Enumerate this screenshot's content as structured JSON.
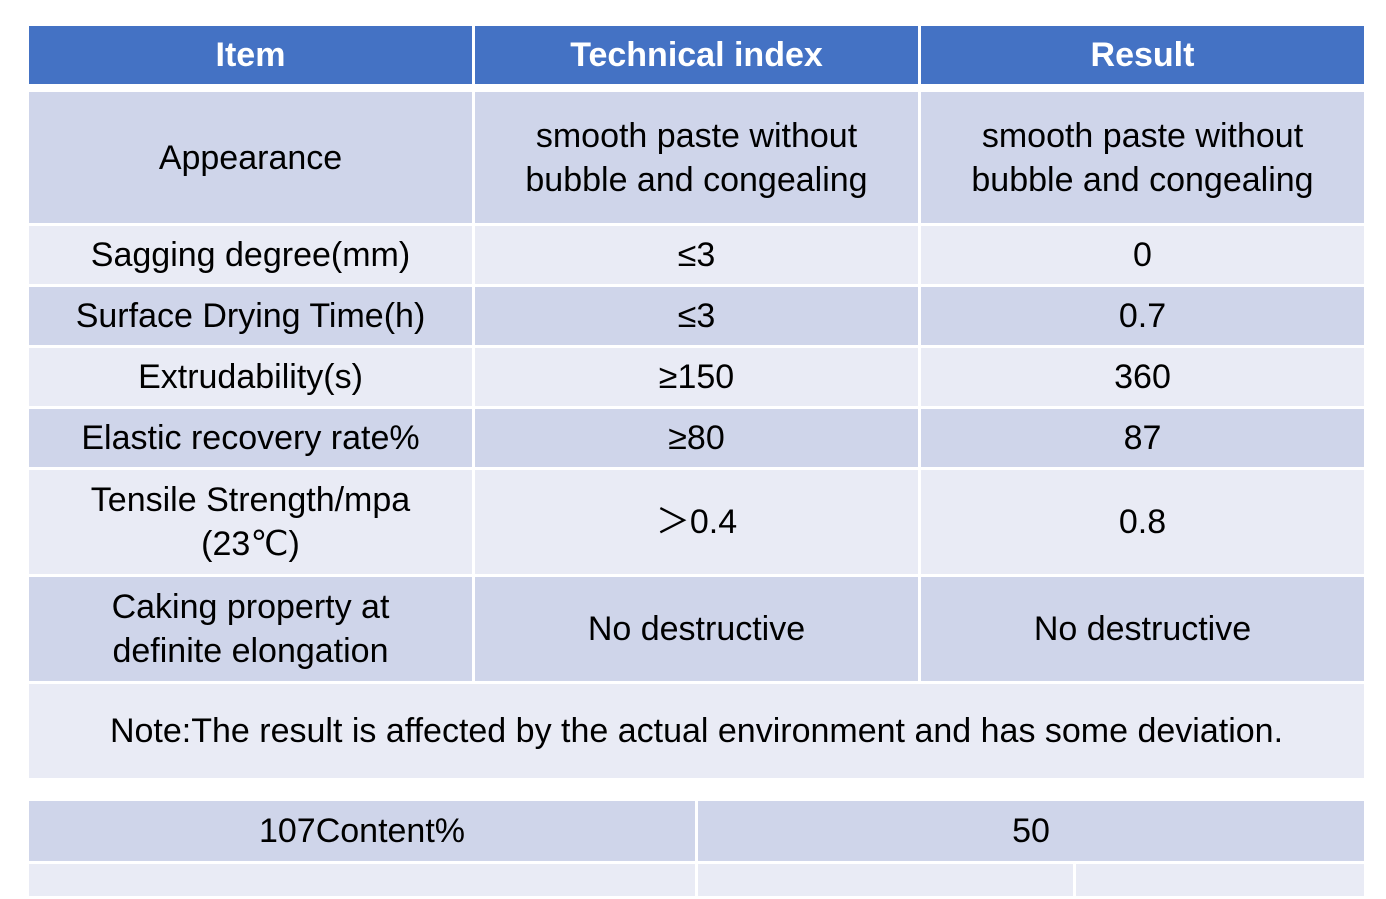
{
  "table": {
    "headers": {
      "item": "Item",
      "technical_index": "Technical index",
      "result": "Result"
    },
    "rows": [
      {
        "item": "Appearance",
        "technical_index_line1": "smooth paste without",
        "technical_index_line2": "bubble and congealing",
        "result_line1": "smooth paste without",
        "result_line2": "bubble and congealing"
      },
      {
        "item": "Sagging degree(mm)",
        "technical_index": "≤3",
        "result": "0"
      },
      {
        "item": "Surface Drying Time(h)",
        "technical_index": "≤3",
        "result": "0.7"
      },
      {
        "item": "Extrudability(s)",
        "technical_index": "≥150",
        "result": "360"
      },
      {
        "item": "Elastic recovery rate%",
        "technical_index": "≥80",
        "result": "87"
      },
      {
        "item_line1": "Tensile Strength/mpa",
        "item_line2": "(23℃)",
        "technical_index": "＞0.4",
        "result": "0.8"
      },
      {
        "item_line1": "Caking property at",
        "item_line2": "definite elongation",
        "technical_index": "No destructive",
        "result": "No destructive"
      }
    ],
    "note": "Note:The result is affected by the actual environment and has some deviation."
  },
  "bottom_table": {
    "rows": [
      {
        "label": "107Content%",
        "value": "50"
      }
    ]
  },
  "colors": {
    "header_bg": "#4472c4",
    "row_dark": "#cfd5ea",
    "row_light": "#e9ebf5",
    "border": "#ffffff"
  }
}
